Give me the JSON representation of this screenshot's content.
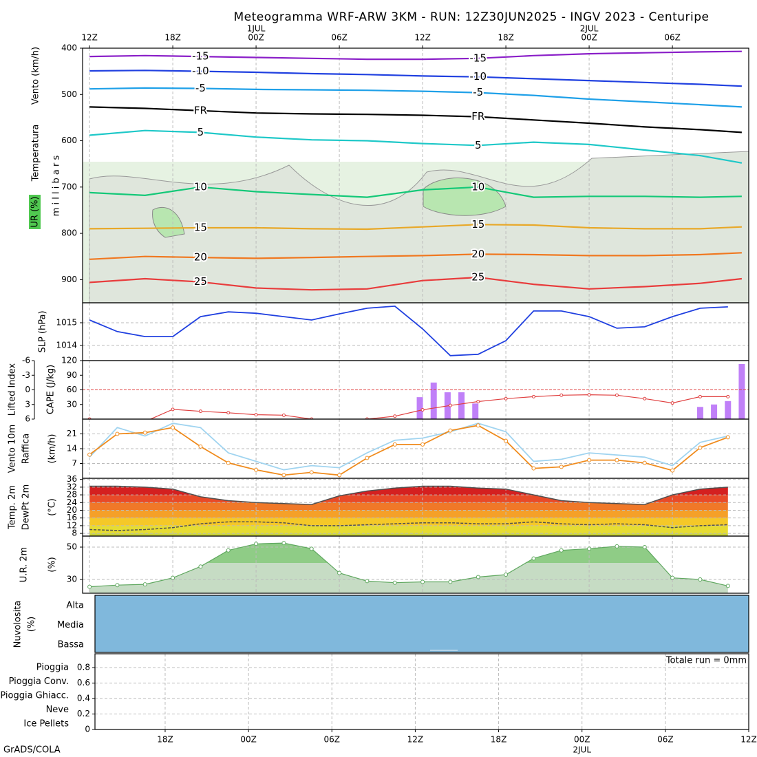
{
  "title": "Meteogramma WRF-ARW 3KM - RUN: 12Z30JUN2025 - INGV 2023 - Centuripe",
  "footer": "GrADS/COLA",
  "chart_data": [
    {
      "type": "contour",
      "labels": [
        "Vento (km/h)",
        "Temperatura",
        "UR (%)",
        "m i l l i b a r s"
      ],
      "xlim": [
        -0.5,
        47.5
      ],
      "xticks": [
        {
          "value": 0,
          "label": "12Z"
        },
        {
          "value": 6,
          "label": "18Z"
        },
        {
          "value": 12,
          "label": "00Z"
        },
        {
          "value": 18,
          "label": "06Z"
        },
        {
          "value": 24,
          "label": "12Z"
        },
        {
          "value": 30,
          "label": "18Z"
        },
        {
          "value": 36,
          "label": "00Z"
        },
        {
          "value": 42,
          "label": "06Z"
        }
      ],
      "dates": [
        {
          "value": 12,
          "label": "1JUL"
        },
        {
          "value": 36,
          "label": "2JUL"
        }
      ],
      "ylim": [
        400,
        950
      ],
      "y_inverted": true,
      "yticks": [
        400,
        500,
        600,
        700,
        800,
        900
      ],
      "x": [
        0,
        4,
        8,
        12,
        16,
        20,
        24,
        28,
        32,
        36,
        40,
        44,
        47
      ],
      "series": [
        {
          "name": "-15",
          "color": "#8a1ec8",
          "values": [
            418,
            416,
            418,
            420,
            422,
            424,
            424,
            422,
            416,
            412,
            410,
            408,
            407
          ]
        },
        {
          "name": "-10",
          "color": "#2040e0",
          "values": [
            449,
            448,
            450,
            452,
            455,
            457,
            460,
            462,
            466,
            470,
            474,
            478,
            482
          ]
        },
        {
          "name": "-5",
          "color": "#1ea0e8",
          "values": [
            488,
            486,
            487,
            489,
            490,
            491,
            493,
            496,
            502,
            510,
            516,
            522,
            527
          ]
        },
        {
          "name": "FR",
          "color": "#000000",
          "values": [
            527,
            530,
            535,
            540,
            542,
            543,
            545,
            548,
            555,
            562,
            570,
            576,
            582
          ]
        },
        {
          "name": "5",
          "color": "#1ec8c8",
          "values": [
            588,
            578,
            582,
            592,
            598,
            600,
            606,
            610,
            603,
            608,
            620,
            632,
            648
          ]
        },
        {
          "name": "10",
          "color": "#14c878",
          "values": [
            712,
            718,
            700,
            710,
            716,
            722,
            706,
            700,
            722,
            720,
            720,
            722,
            720
          ]
        },
        {
          "name": "15",
          "color": "#e8a828",
          "values": [
            790,
            789,
            788,
            788,
            790,
            791,
            786,
            781,
            782,
            788,
            790,
            790,
            786
          ]
        },
        {
          "name": "20",
          "color": "#f07820",
          "values": [
            856,
            850,
            852,
            854,
            852,
            850,
            848,
            845,
            846,
            848,
            848,
            846,
            842
          ]
        },
        {
          "name": "25",
          "color": "#e83c3c",
          "values": [
            906,
            898,
            905,
            918,
            922,
            920,
            902,
            895,
            910,
            920,
            915,
            908,
            898
          ]
        }
      ]
    },
    {
      "type": "line",
      "labels": [
        "SLP (hPa)"
      ],
      "ylim": [
        1013.33,
        1015.88
      ],
      "yticks": [
        1014,
        1015
      ],
      "x": [
        0,
        2,
        4,
        6,
        8,
        10,
        12,
        14,
        16,
        18,
        20,
        22,
        24,
        26,
        28,
        30,
        32,
        34,
        36,
        38,
        40,
        42,
        44,
        46
      ],
      "series": [
        {
          "color": "#2040e0",
          "values": [
            1015.12,
            1014.61,
            1014.39,
            1014.39,
            1015.27,
            1015.48,
            1015.42,
            1015.27,
            1015.12,
            1015.39,
            1015.64,
            1015.73,
            1014.73,
            1013.55,
            1013.61,
            1014.21,
            1015.52,
            1015.52,
            1015.27,
            1014.76,
            1014.82,
            1015.27,
            1015.64,
            1015.7
          ]
        }
      ]
    },
    {
      "type": "combo",
      "ylabel": "CAPE (J/kg)",
      "y2label": "Lifted Index",
      "ylim": [
        0,
        120
      ],
      "yticks": [
        30,
        60,
        90,
        120
      ],
      "y2lim": [
        6,
        -6
      ],
      "y2ticks": [
        -6,
        -3,
        0,
        3,
        6
      ],
      "reference": 0,
      "bars": {
        "color": "#c080f8",
        "x": [
          23.8,
          24.8,
          25.8,
          26.8,
          27.8,
          44,
          45,
          46,
          47
        ],
        "values": [
          45,
          75,
          55,
          55,
          32,
          25,
          30,
          37,
          113
        ]
      },
      "x": [
        0,
        2,
        4,
        6,
        8,
        10,
        12,
        14,
        16,
        18,
        20,
        22,
        24,
        26,
        28,
        30,
        32,
        34,
        36,
        38,
        40,
        42,
        44,
        46
      ],
      "series": [
        {
          "axis": "y2",
          "color": "#e04040",
          "values": [
            6,
            6.5,
            6.5,
            4,
            4.4,
            4.7,
            5.1,
            5.2,
            6,
            6.5,
            6,
            5.4,
            4.1,
            3.2,
            2.4,
            1.8,
            1.4,
            1.1,
            1,
            1.1,
            1.8,
            2.7,
            1.4,
            1.4
          ]
        }
      ]
    },
    {
      "type": "line",
      "labels": [
        "Vento 10m",
        "Raffica",
        "(km/h)"
      ],
      "ylim": [
        0,
        28
      ],
      "yticks": [
        7,
        14,
        21
      ],
      "x": [
        0,
        2,
        4,
        6,
        8,
        10,
        12,
        14,
        16,
        18,
        20,
        22,
        24,
        26,
        28,
        30,
        32,
        34,
        36,
        38,
        40,
        42,
        44,
        46
      ],
      "series": [
        {
          "color": "#a0d4f0",
          "values": [
            10,
            24,
            20,
            26,
            24,
            12,
            8,
            4,
            6,
            5,
            12,
            18,
            19,
            22,
            26,
            22,
            8,
            9,
            12,
            11,
            10,
            6,
            17,
            20
          ]
        },
        {
          "color": "#f08c1e",
          "markers": true,
          "values": [
            11.2,
            21,
            21.6,
            24,
            15,
            7.3,
            4,
            1.5,
            2.8,
            1.5,
            9.6,
            16,
            16,
            22.6,
            25,
            17.7,
            4.7,
            5.4,
            8.6,
            8.6,
            7.3,
            3.7,
            14.5,
            19.4
          ]
        }
      ]
    },
    {
      "type": "bands",
      "labels": [
        "Temp. 2m",
        "DewPt 2m",
        "(°C)"
      ],
      "ylim": [
        6.6,
        36.6
      ],
      "yticks": [
        8,
        12,
        16,
        20,
        24,
        28,
        32,
        36
      ],
      "x": [
        0,
        2,
        4,
        6,
        8,
        10,
        12,
        14,
        16,
        18,
        20,
        22,
        24,
        26,
        28,
        30,
        32,
        34,
        36,
        38,
        40,
        42,
        44,
        46
      ],
      "series": [
        {
          "color": "#505050",
          "values": [
            32.5,
            32.5,
            32,
            31,
            27,
            25,
            24,
            23.5,
            23,
            27.5,
            30,
            31.5,
            32.5,
            32.5,
            31.5,
            31,
            28,
            25,
            24,
            23.5,
            23,
            28,
            31,
            32
          ]
        },
        {
          "color": "#505050",
          "dashed": true,
          "values": [
            10,
            9.5,
            10,
            11,
            13,
            14,
            14,
            13.5,
            12,
            12,
            12.5,
            13,
            13.5,
            13.5,
            13,
            13,
            14,
            13,
            12.5,
            13,
            12.5,
            11,
            12,
            12.5
          ]
        }
      ]
    },
    {
      "type": "area",
      "labels": [
        "U.R. 2m",
        "(%)"
      ],
      "ylim": [
        21.5,
        56.8
      ],
      "yticks": [
        30,
        50
      ],
      "x": [
        0,
        2,
        4,
        6,
        8,
        10,
        12,
        14,
        16,
        18,
        20,
        22,
        24,
        26,
        28,
        30,
        32,
        34,
        36,
        38,
        40,
        42,
        44,
        46
      ],
      "series": [
        {
          "color": "#60a860",
          "values": [
            25.5,
            26.5,
            27,
            31,
            38,
            48,
            52,
            52.5,
            49,
            34,
            29,
            28,
            28.5,
            28.5,
            31.5,
            33,
            43,
            48,
            49,
            50.5,
            50,
            31,
            30,
            26
          ]
        }
      ]
    },
    {
      "type": "cloud",
      "labels": [
        "Nuvolosita",
        "(%)"
      ],
      "categories": [
        "Alta",
        "Media",
        "Bassa"
      ]
    },
    {
      "type": "precip",
      "annotation": "Totale run = 0mm",
      "xlim": [
        0.95,
        48
      ],
      "xticks": [
        {
          "value": 6,
          "label": "18Z"
        },
        {
          "value": 12,
          "label": "00Z"
        },
        {
          "value": 18,
          "label": "06Z"
        },
        {
          "value": 24,
          "label": "12Z"
        },
        {
          "value": 30,
          "label": "18Z"
        },
        {
          "value": 36,
          "label": "00Z"
        },
        {
          "value": 42,
          "label": "06Z"
        },
        {
          "value": 48,
          "label": "12Z"
        }
      ],
      "dates": [
        {
          "value": 36,
          "label": "2JUL"
        }
      ],
      "ylim": [
        0,
        0.98
      ],
      "yticks": [
        0,
        0.2,
        0.4,
        0.6,
        0.8
      ],
      "series": [
        {
          "name": "Pioggia",
          "color": "#30c030"
        },
        {
          "name": "Pioggia Conv.",
          "color": "#e83030"
        },
        {
          "name": "Pioggia Ghiacc.",
          "color": "#f08020"
        },
        {
          "name": "Neve",
          "color": "#2020e0"
        },
        {
          "name": "Ice Pellets",
          "color": "#20c8c8"
        }
      ]
    }
  ]
}
